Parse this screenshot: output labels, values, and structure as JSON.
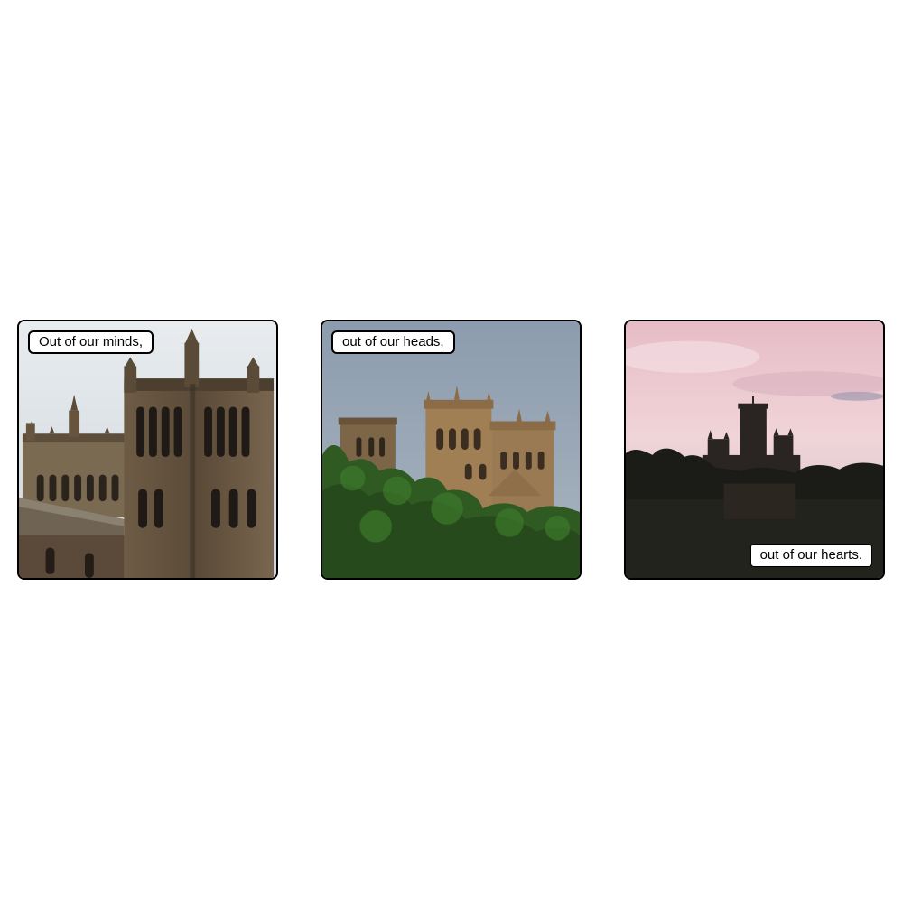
{
  "panels": [
    {
      "caption": "Out of our minds,"
    },
    {
      "caption": "out of our heads,"
    },
    {
      "caption": "out of our hearts."
    }
  ],
  "colors": {
    "sky_day": "#d9dfe4",
    "sky_evening": "#97a6b8",
    "sky_sunset_pink": "#e7bcc7",
    "stone": "#8a7356",
    "foliage": "#2f5a22",
    "silhouette": "#1c1a18"
  }
}
